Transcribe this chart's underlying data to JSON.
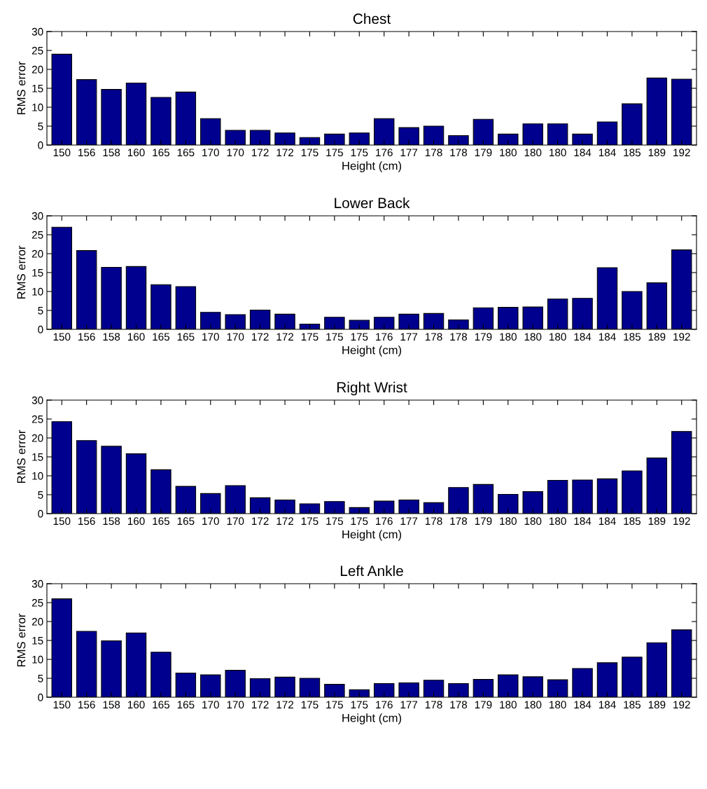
{
  "chart_data": [
    {
      "type": "bar",
      "title": "Chest",
      "xlabel": "Height (cm)",
      "ylabel": "RMS error",
      "color": "#00008f",
      "ylim": [
        0,
        30
      ],
      "yticks": [
        0,
        5,
        10,
        15,
        20,
        25,
        30
      ],
      "grid": false,
      "categories": [
        "150",
        "156",
        "158",
        "160",
        "165",
        "165",
        "170",
        "170",
        "172",
        "172",
        "175",
        "175",
        "175",
        "176",
        "177",
        "178",
        "178",
        "179",
        "180",
        "180",
        "180",
        "184",
        "184",
        "185",
        "189",
        "192"
      ],
      "values": [
        24.0,
        17.3,
        14.7,
        16.4,
        12.6,
        14.0,
        7.0,
        3.9,
        3.9,
        3.2,
        2.0,
        2.9,
        3.2,
        7.0,
        4.6,
        5.0,
        2.5,
        6.8,
        2.9,
        5.6,
        5.6,
        2.9,
        6.1,
        10.9,
        17.7,
        17.4
      ]
    },
    {
      "type": "bar",
      "title": "Lower Back",
      "xlabel": "Height (cm)",
      "ylabel": "RMS error",
      "color": "#00008f",
      "ylim": [
        0,
        30
      ],
      "yticks": [
        0,
        5,
        10,
        15,
        20,
        25,
        30
      ],
      "grid": false,
      "categories": [
        "150",
        "156",
        "158",
        "160",
        "165",
        "165",
        "170",
        "170",
        "172",
        "172",
        "175",
        "175",
        "175",
        "176",
        "177",
        "178",
        "178",
        "179",
        "180",
        "180",
        "180",
        "184",
        "184",
        "185",
        "189",
        "192"
      ],
      "values": [
        27.0,
        20.8,
        16.4,
        16.6,
        11.8,
        11.3,
        4.5,
        3.9,
        5.1,
        4.0,
        1.4,
        3.2,
        2.4,
        3.2,
        4.0,
        4.2,
        2.5,
        5.7,
        5.8,
        5.9,
        8.0,
        8.2,
        16.3,
        10.0,
        12.3,
        21.0
      ]
    },
    {
      "type": "bar",
      "title": "Right Wrist",
      "xlabel": "Height (cm)",
      "ylabel": "RMS error",
      "color": "#00008f",
      "ylim": [
        0,
        30
      ],
      "yticks": [
        0,
        5,
        10,
        15,
        20,
        25,
        30
      ],
      "grid": false,
      "categories": [
        "150",
        "156",
        "158",
        "160",
        "165",
        "165",
        "170",
        "170",
        "172",
        "172",
        "175",
        "175",
        "175",
        "176",
        "177",
        "178",
        "178",
        "179",
        "180",
        "180",
        "180",
        "184",
        "184",
        "185",
        "189",
        "192"
      ],
      "values": [
        24.3,
        19.3,
        17.8,
        15.8,
        11.6,
        7.2,
        5.3,
        7.4,
        4.2,
        3.6,
        2.6,
        3.2,
        1.6,
        3.3,
        3.6,
        2.9,
        6.9,
        7.7,
        5.1,
        5.8,
        8.8,
        8.9,
        9.2,
        11.3,
        14.7,
        21.7
      ]
    },
    {
      "type": "bar",
      "title": "Left Ankle",
      "xlabel": "Height (cm)",
      "ylabel": "RMS error",
      "color": "#00008f",
      "ylim": [
        0,
        30
      ],
      "yticks": [
        0,
        5,
        10,
        15,
        20,
        25,
        30
      ],
      "grid": false,
      "categories": [
        "150",
        "156",
        "158",
        "160",
        "165",
        "165",
        "170",
        "170",
        "172",
        "172",
        "175",
        "175",
        "175",
        "176",
        "177",
        "178",
        "178",
        "179",
        "180",
        "180",
        "180",
        "184",
        "184",
        "185",
        "189",
        "192"
      ],
      "values": [
        26.0,
        17.4,
        14.9,
        17.0,
        11.9,
        6.4,
        5.9,
        7.1,
        4.9,
        5.3,
        5.0,
        3.4,
        2.0,
        3.6,
        3.8,
        4.5,
        3.6,
        4.7,
        5.9,
        5.4,
        4.6,
        7.6,
        9.1,
        10.6,
        14.4,
        17.8
      ]
    }
  ]
}
